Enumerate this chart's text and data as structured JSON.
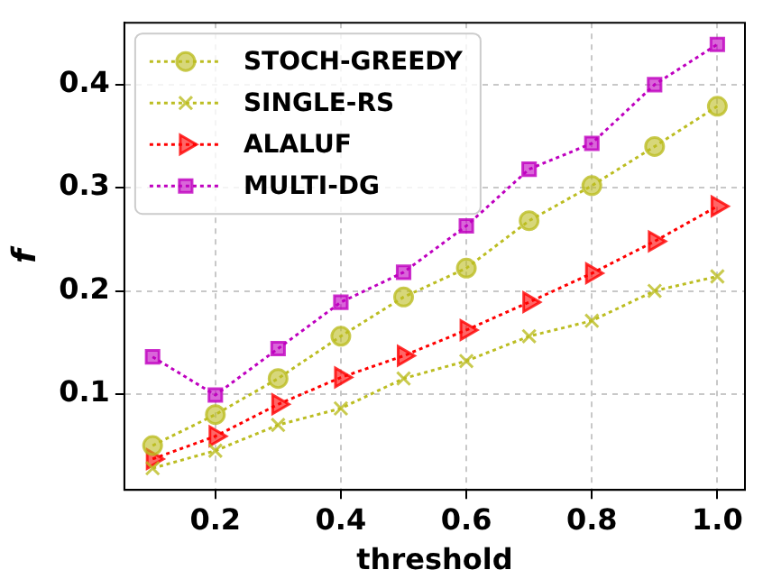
{
  "chart_data": {
    "type": "line",
    "xlabel": "threshold",
    "ylabel": "f",
    "x": [
      0.1,
      0.2,
      0.3,
      0.4,
      0.5,
      0.6,
      0.7,
      0.8,
      0.9,
      1.0
    ],
    "xlim": [
      0.055,
      1.044
    ],
    "xticks": [
      0.2,
      0.4,
      0.6,
      0.8,
      {
        "value": 1,
        "label": "1.0"
      }
    ],
    "ylim": [
      0.007,
      0.46
    ],
    "yticks": [
      0.1,
      0.2,
      0.3,
      0.4
    ],
    "grid": true,
    "legend": "top left",
    "line_style": "dotted",
    "series": [
      {
        "name": "STOCH-GREEDY",
        "color": "#bcbd22",
        "marker": "circle",
        "values": [
          0.05,
          0.08,
          0.115,
          0.156,
          0.194,
          0.222,
          0.268,
          0.302,
          0.34,
          0.379
        ]
      },
      {
        "name": "SINGLE-RS",
        "color": "#bcbd22",
        "marker": "cross",
        "values": [
          0.028,
          0.045,
          0.07,
          0.086,
          0.115,
          0.132,
          0.156,
          0.171,
          0.2,
          0.214
        ]
      },
      {
        "name": "ALALUF",
        "color": "#ff0000",
        "marker": "triangle",
        "values": [
          0.037,
          0.059,
          0.09,
          0.116,
          0.137,
          0.162,
          0.189,
          0.217,
          0.248,
          0.282
        ]
      },
      {
        "name": "MULTI-DG",
        "color": "#bf00bf",
        "marker": "square",
        "values": [
          0.136,
          0.099,
          0.144,
          0.189,
          0.218,
          0.263,
          0.318,
          0.343,
          0.4,
          0.439
        ]
      }
    ]
  }
}
